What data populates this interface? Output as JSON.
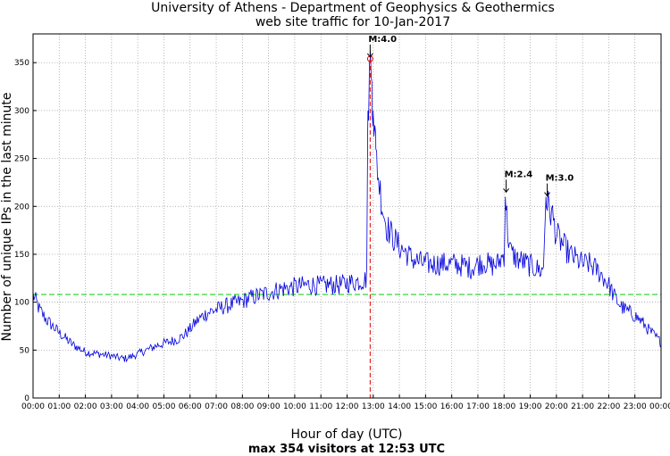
{
  "chart_data": {
    "type": "line",
    "title": "University of Athens - Department of Geophysics & Geothermics",
    "subtitle": "web site traffic for 10-Jan-2017",
    "xlabel": "Hour of day (UTC)",
    "xlabel2": "max 354 visitors at 12:53 UTC",
    "ylabel": "Number of unique IPs in the last minute",
    "xlim": [
      0,
      24
    ],
    "ylim": [
      0,
      380
    ],
    "yticks": [
      0,
      50,
      100,
      150,
      200,
      250,
      300,
      350
    ],
    "xtick_labels": [
      "00:00",
      "01:00",
      "02:00",
      "03:00",
      "04:00",
      "05:00",
      "06:00",
      "07:00",
      "08:00",
      "09:00",
      "10:00",
      "11:00",
      "12:00",
      "13:00",
      "14:00",
      "15:00",
      "16:00",
      "17:00",
      "18:00",
      "19:00",
      "20:00",
      "21:00",
      "22:00",
      "23:00",
      "00:00"
    ],
    "grid": true,
    "reference_line": {
      "value": 108,
      "color": "#00cc00",
      "style": "dashed"
    },
    "max_marker": {
      "hour": 12.883,
      "value": 354,
      "color": "#dd0000"
    },
    "series": [
      {
        "name": "unique IPs",
        "color": "#0000dd",
        "x": [
          0.0,
          0.25,
          0.5,
          0.75,
          1.0,
          1.25,
          1.5,
          1.75,
          2.0,
          2.25,
          2.5,
          2.75,
          3.0,
          3.25,
          3.5,
          3.75,
          4.0,
          4.25,
          4.5,
          4.75,
          5.0,
          5.25,
          5.5,
          5.75,
          6.0,
          6.25,
          6.5,
          6.75,
          7.0,
          7.25,
          7.5,
          7.75,
          8.0,
          8.25,
          8.5,
          8.75,
          9.0,
          9.25,
          9.5,
          9.75,
          10.0,
          10.25,
          10.5,
          10.75,
          11.0,
          11.25,
          11.5,
          11.75,
          12.0,
          12.25,
          12.5,
          12.75,
          12.8,
          12.883,
          12.95,
          13.0,
          13.1,
          13.2,
          13.35,
          13.5,
          13.75,
          14.0,
          14.25,
          14.5,
          14.75,
          15.0,
          15.25,
          15.5,
          15.75,
          16.0,
          16.25,
          16.5,
          16.75,
          17.0,
          17.25,
          17.5,
          17.75,
          18.0,
          18.05,
          18.15,
          18.25,
          18.5,
          18.75,
          19.0,
          19.25,
          19.5,
          19.6,
          19.7,
          19.85,
          20.0,
          20.25,
          20.5,
          20.75,
          21.0,
          21.25,
          21.5,
          21.75,
          22.0,
          22.25,
          22.5,
          22.75,
          23.0,
          23.25,
          23.5,
          23.75,
          24.0
        ],
        "values": [
          108,
          92,
          82,
          75,
          68,
          62,
          56,
          52,
          48,
          47,
          46,
          45,
          44,
          42,
          41,
          43,
          46,
          49,
          52,
          55,
          57,
          59,
          61,
          65,
          72,
          80,
          86,
          90,
          92,
          95,
          97,
          99,
          101,
          104,
          106,
          108,
          110,
          112,
          114,
          115,
          116,
          117,
          118,
          118,
          117,
          118,
          118,
          118,
          120,
          121,
          122,
          124,
          300,
          354,
          330,
          300,
          260,
          230,
          200,
          180,
          168,
          158,
          152,
          145,
          142,
          140,
          140,
          140,
          140,
          140,
          139,
          138,
          136,
          140,
          142,
          138,
          140,
          150,
          210,
          170,
          152,
          145,
          142,
          138,
          135,
          132,
          210,
          198,
          190,
          170,
          160,
          150,
          145,
          140,
          140,
          135,
          128,
          118,
          104,
          95,
          90,
          86,
          80,
          72,
          65,
          58
        ]
      }
    ],
    "annotations": [
      {
        "label": "M:4.0",
        "hour": 12.883,
        "value": 354
      },
      {
        "label": "M:2.4",
        "hour": 18.08,
        "value": 213
      },
      {
        "label": "M:3.0",
        "hour": 19.65,
        "value": 209
      }
    ]
  }
}
